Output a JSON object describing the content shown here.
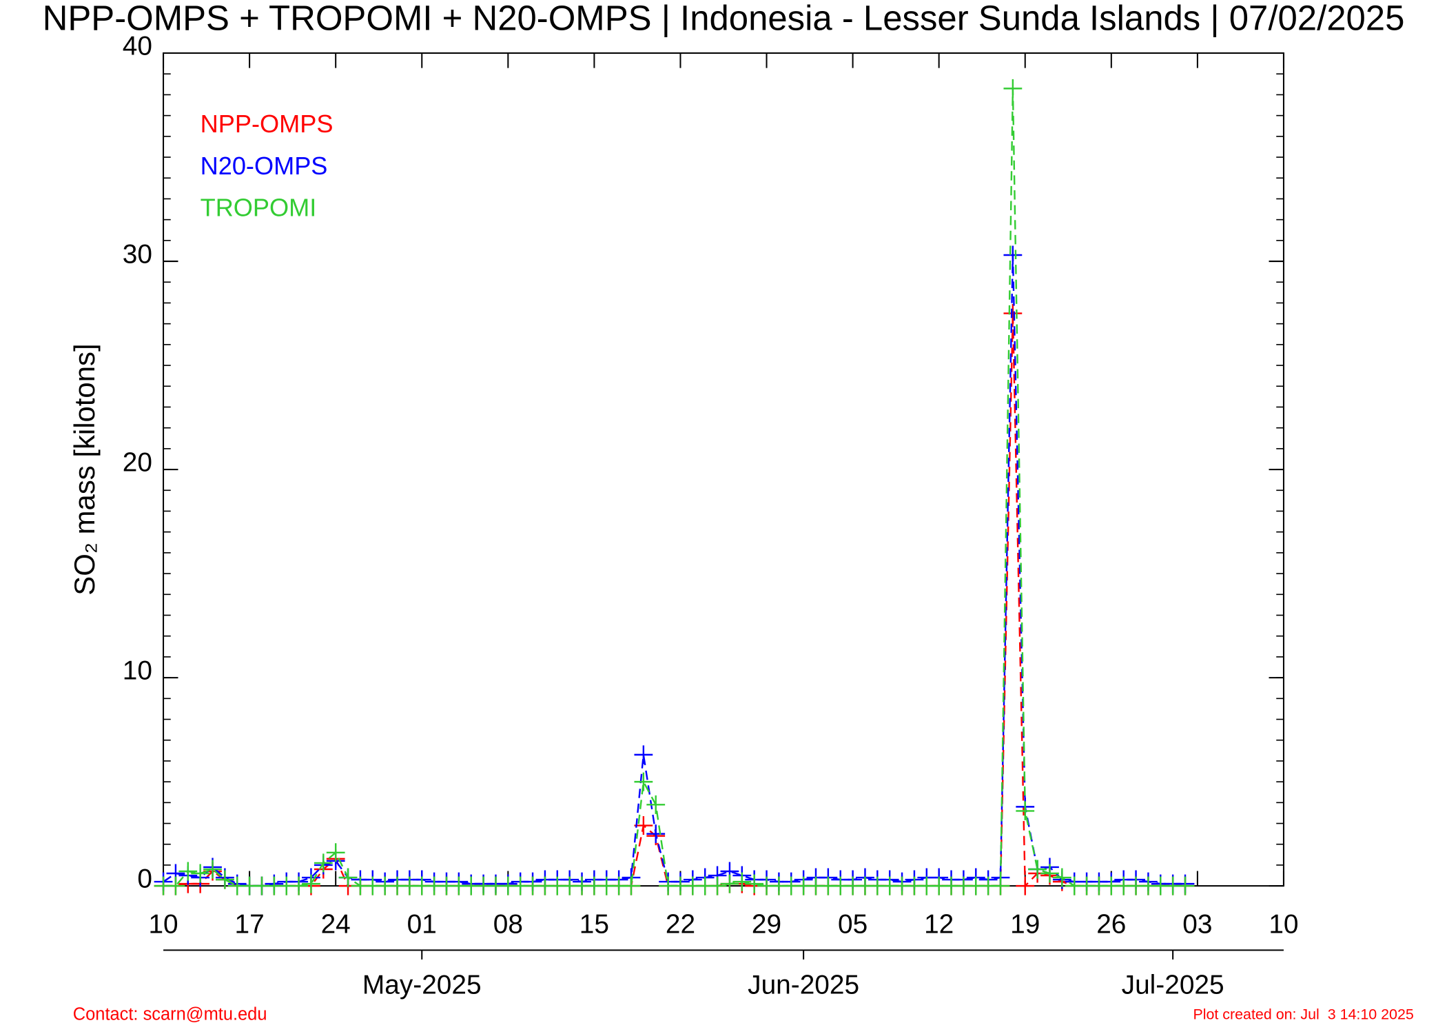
{
  "chart_data": {
    "type": "line",
    "title": "NPP-OMPS + TROPOMI + N20-OMPS | Indonesia - Lesser Sunda Islands | 07/02/2025",
    "ylabel": "SO₂ mass [kilotons]",
    "x": [
      "2025-04-10",
      "2025-04-11",
      "2025-04-12",
      "2025-04-13",
      "2025-04-14",
      "2025-04-15",
      "2025-04-16",
      "2025-04-17",
      "2025-04-18",
      "2025-04-19",
      "2025-04-20",
      "2025-04-21",
      "2025-04-22",
      "2025-04-23",
      "2025-04-24",
      "2025-04-25",
      "2025-04-26",
      "2025-04-27",
      "2025-04-28",
      "2025-04-29",
      "2025-04-30",
      "2025-05-01",
      "2025-05-02",
      "2025-05-03",
      "2025-05-04",
      "2025-05-05",
      "2025-05-06",
      "2025-05-07",
      "2025-05-08",
      "2025-05-09",
      "2025-05-10",
      "2025-05-11",
      "2025-05-12",
      "2025-05-13",
      "2025-05-14",
      "2025-05-15",
      "2025-05-16",
      "2025-05-17",
      "2025-05-18",
      "2025-05-19",
      "2025-05-20",
      "2025-05-21",
      "2025-05-22",
      "2025-05-23",
      "2025-05-24",
      "2025-05-25",
      "2025-05-26",
      "2025-05-27",
      "2025-05-28",
      "2025-05-29",
      "2025-05-30",
      "2025-05-31",
      "2025-06-01",
      "2025-06-02",
      "2025-06-03",
      "2025-06-04",
      "2025-06-05",
      "2025-06-06",
      "2025-06-07",
      "2025-06-08",
      "2025-06-09",
      "2025-06-10",
      "2025-06-11",
      "2025-06-12",
      "2025-06-13",
      "2025-06-14",
      "2025-06-15",
      "2025-06-16",
      "2025-06-17",
      "2025-06-18",
      "2025-06-19",
      "2025-06-20",
      "2025-06-21",
      "2025-06-22",
      "2025-06-23",
      "2025-06-24",
      "2025-06-25",
      "2025-06-26",
      "2025-06-27",
      "2025-06-28",
      "2025-06-29",
      "2025-06-30",
      "2025-07-01",
      "2025-07-02"
    ],
    "series": [
      {
        "name": "NPP-OMPS",
        "color": "#ff0000",
        "values": [
          0,
          0,
          0.1,
          0.1,
          0.7,
          0.3,
          0,
          0,
          0,
          0,
          0,
          0,
          0,
          0.8,
          1.3,
          0,
          0,
          0,
          0,
          0,
          0,
          0,
          0,
          0,
          0,
          0,
          0,
          0,
          0,
          0,
          0,
          0,
          0,
          0,
          0,
          0,
          0,
          0,
          0,
          2.9,
          2.4,
          0,
          0,
          0,
          0,
          0,
          0.1,
          0.1,
          0,
          0,
          0,
          0,
          0,
          0,
          0,
          0,
          0,
          0,
          0,
          0,
          0,
          0,
          0,
          0,
          0,
          0,
          0,
          0,
          0,
          27.5,
          0,
          0.6,
          0.5,
          0.2,
          0,
          0,
          0,
          0,
          0,
          0,
          0,
          0,
          0,
          0
        ]
      },
      {
        "name": "N20-OMPS",
        "color": "#0000ff",
        "values": [
          0.2,
          0.6,
          0.5,
          0.4,
          0.9,
          0.4,
          0.1,
          0,
          0,
          0.1,
          0.2,
          0.2,
          0.4,
          1.0,
          1.2,
          0.4,
          0.3,
          0.3,
          0.2,
          0.3,
          0.3,
          0.3,
          0.2,
          0.2,
          0.2,
          0.1,
          0.1,
          0.1,
          0.1,
          0.2,
          0.2,
          0.3,
          0.3,
          0.3,
          0.2,
          0.3,
          0.3,
          0.3,
          0.4,
          6.3,
          2.5,
          0.2,
          0.2,
          0.3,
          0.4,
          0.5,
          0.7,
          0.5,
          0.3,
          0.3,
          0.2,
          0.2,
          0.3,
          0.4,
          0.4,
          0.3,
          0.3,
          0.4,
          0.3,
          0.3,
          0.2,
          0.3,
          0.4,
          0.4,
          0.3,
          0.3,
          0.4,
          0.3,
          0.4,
          30.3,
          3.8,
          0.8,
          0.9,
          0.3,
          0.2,
          0.2,
          0.2,
          0.2,
          0.3,
          0.3,
          0.2,
          0.1,
          0.1,
          0.1
        ]
      },
      {
        "name": "TROPOMI",
        "color": "#33cc33",
        "values": [
          0,
          0,
          0.7,
          0.6,
          0.8,
          0.3,
          0,
          0,
          0,
          0,
          0,
          0,
          0.1,
          1.1,
          1.6,
          0.4,
          0,
          0,
          0,
          0,
          0,
          0,
          0,
          0,
          0,
          0,
          0,
          0,
          0,
          0,
          0,
          0,
          0,
          0,
          0,
          0,
          0,
          0,
          0,
          5.0,
          3.9,
          0,
          0,
          0,
          0,
          0,
          0.1,
          0.2,
          0.1,
          0,
          0,
          0,
          0,
          0,
          0,
          0,
          0,
          0,
          0,
          0,
          0,
          0,
          0,
          0,
          0,
          0,
          0,
          0,
          0,
          38.3,
          3.6,
          0.8,
          0.6,
          0.4,
          0,
          0,
          0,
          0,
          0,
          0,
          0,
          0,
          0,
          0
        ]
      }
    ],
    "xlim": [
      "2025-04-10",
      "2025-07-10"
    ],
    "xticks": [
      {
        "value": "2025-04-10",
        "label": "10"
      },
      {
        "value": "2025-04-17",
        "label": "17"
      },
      {
        "value": "2025-04-24",
        "label": "24"
      },
      {
        "value": "2025-05-01",
        "label": "01"
      },
      {
        "value": "2025-05-08",
        "label": "08"
      },
      {
        "value": "2025-05-15",
        "label": "15"
      },
      {
        "value": "2025-05-22",
        "label": "22"
      },
      {
        "value": "2025-05-29",
        "label": "29"
      },
      {
        "value": "2025-06-05",
        "label": "05"
      },
      {
        "value": "2025-06-12",
        "label": "12"
      },
      {
        "value": "2025-06-19",
        "label": "19"
      },
      {
        "value": "2025-06-26",
        "label": "26"
      },
      {
        "value": "2025-07-03",
        "label": "03"
      },
      {
        "value": "2025-07-10",
        "label": "10"
      }
    ],
    "month_ticks": [
      {
        "value": "2025-05-01",
        "label": "May-2025"
      },
      {
        "value": "2025-06-01",
        "label": "Jun-2025"
      },
      {
        "value": "2025-07-01",
        "label": "Jul-2025"
      }
    ],
    "ylim": [
      0,
      40
    ],
    "yticks": [
      0,
      10,
      20,
      30,
      40
    ],
    "legend": "upper left",
    "contact": "Contact: scarn@mtu.edu",
    "created": "Plot created on: Jul  3 14:10 2025"
  }
}
